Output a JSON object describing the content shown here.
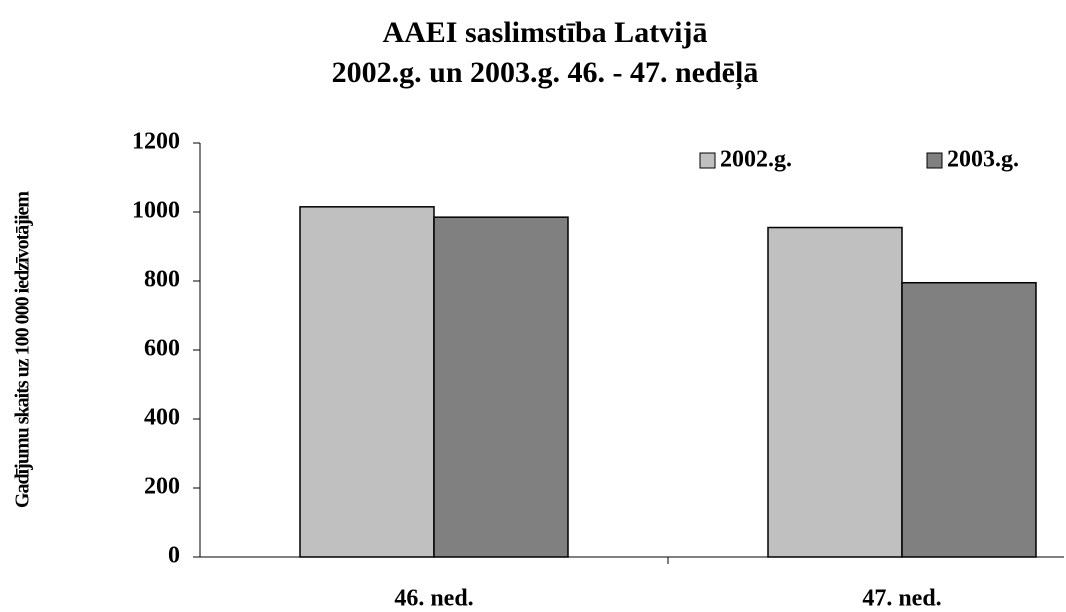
{
  "chart_data": {
    "type": "bar",
    "title": [
      "AAEI saslimstība Latvijā",
      "2002.g. un 2003.g. 46. - 47. nedēļā"
    ],
    "y_label": "Gadījumu skaits uz 100 000 iedzīvotājiem",
    "categories": [
      "46. ned.",
      "47. ned."
    ],
    "series": [
      {
        "name": "2002.g.",
        "color": "#c0c0c0",
        "values": [
          1015,
          955
        ]
      },
      {
        "name": "2003.g.",
        "color": "#808080",
        "values": [
          985,
          795
        ]
      }
    ],
    "ylim": [
      0,
      1200
    ],
    "yticks": [
      0,
      200,
      400,
      600,
      800,
      1000,
      1200
    ],
    "legend": "top-right",
    "grid": false
  }
}
